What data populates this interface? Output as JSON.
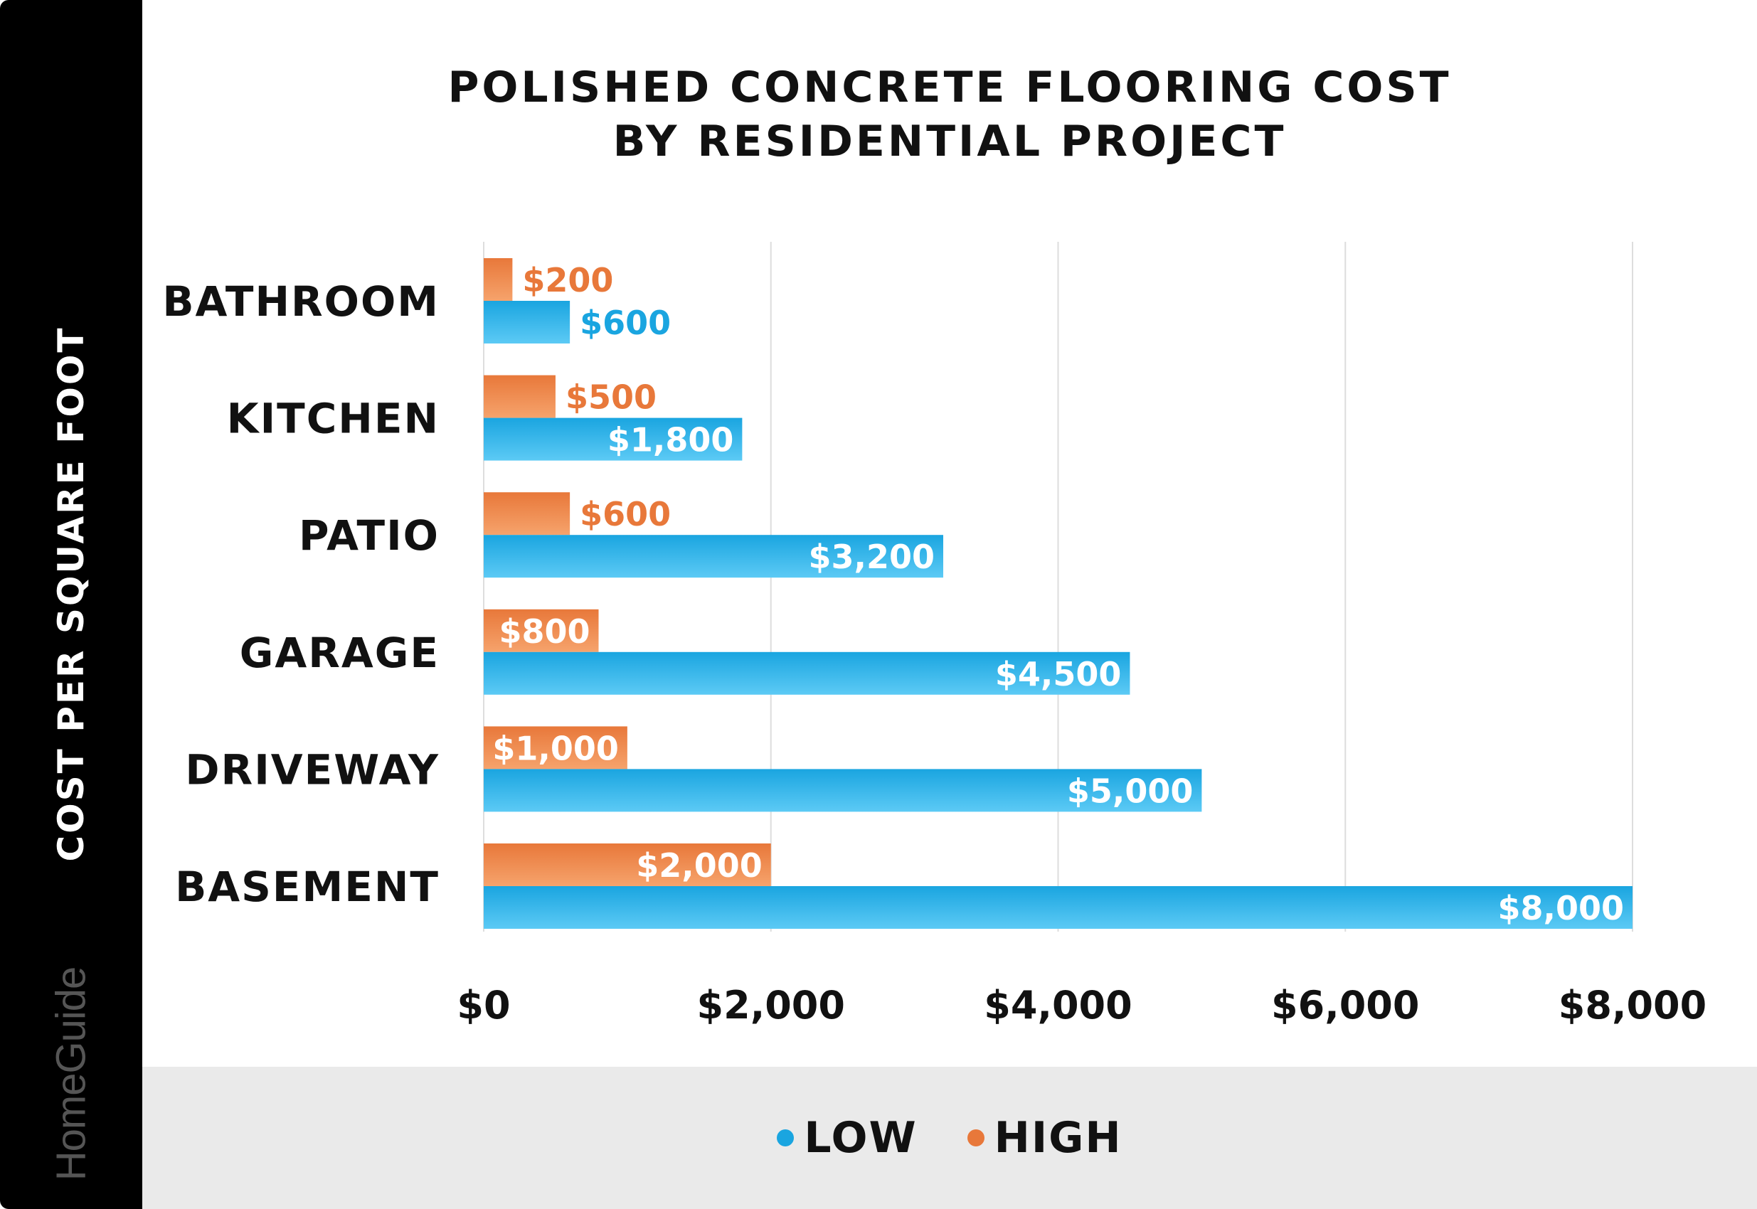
{
  "sidebar": {
    "ylabel": "COST PER SQUARE FOOT",
    "brand": "HomeGuide"
  },
  "colors": {
    "low": "#1aa5e0",
    "low_light": "#5ccaf5",
    "high": "#e8783a",
    "high_light": "#f6a36c",
    "grid": "#dddddd",
    "category_text": "#111111"
  },
  "chart_data": {
    "type": "bar",
    "orientation": "horizontal",
    "title": "POLISHED CONCRETE FLOORING COST BY RESIDENTIAL PROJECT",
    "title_lines": [
      "POLISHED CONCRETE FLOORING COST",
      "BY RESIDENTIAL PROJECT"
    ],
    "categories": [
      "BATHROOM",
      "KITCHEN",
      "PATIO",
      "GARAGE",
      "DRIVEWAY",
      "BASEMENT"
    ],
    "series": [
      {
        "name": "HIGH",
        "values": [
          200,
          500,
          600,
          800,
          1000,
          2000
        ],
        "labels": [
          "$200",
          "$500",
          "$600",
          "$800",
          "$1,000",
          "$2,000"
        ]
      },
      {
        "name": "LOW",
        "values": [
          600,
          1800,
          3200,
          4500,
          5000,
          8000
        ],
        "labels": [
          "$600",
          "$1,800",
          "$3,200",
          "$4,500",
          "$5,000",
          "$8,000"
        ]
      }
    ],
    "xlim": [
      0,
      8000
    ],
    "xticks": [
      0,
      2000,
      4000,
      6000,
      8000
    ],
    "xtick_labels": [
      "$0",
      "$2,000",
      "$4,000",
      "$6,000",
      "$8,000"
    ],
    "grid": true,
    "legend_position": "bottom"
  },
  "legend": {
    "items": [
      {
        "label": "LOW"
      },
      {
        "label": "HIGH"
      }
    ]
  }
}
